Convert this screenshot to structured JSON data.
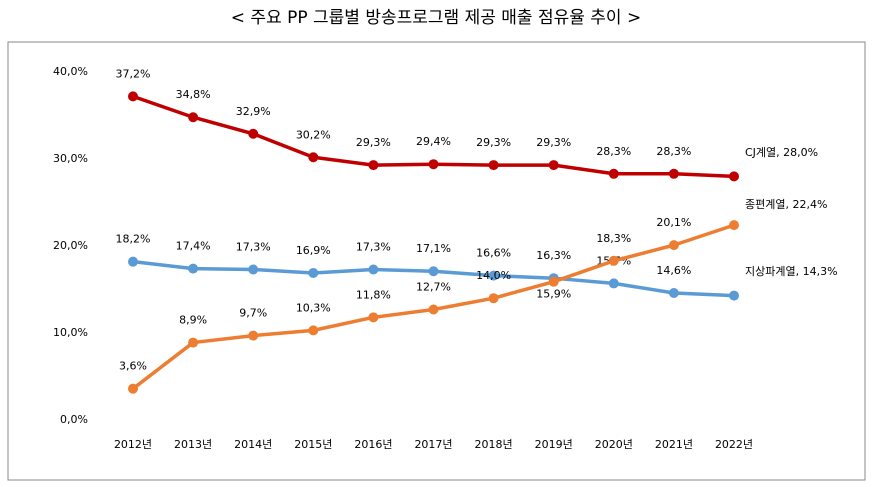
{
  "chart_data": {
    "type": "line",
    "title": "< 주요 PP 그룹별 방송프로그램 제공 매출 점유율 추이 >",
    "categories": [
      "2012년",
      "2013년",
      "2014년",
      "2015년",
      "2016년",
      "2017년",
      "2018년",
      "2019년",
      "2020년",
      "2021년",
      "2022년"
    ],
    "series": [
      {
        "name": "CJ계열",
        "color": "#c00000",
        "values": [
          37.2,
          34.8,
          32.9,
          30.2,
          29.3,
          29.4,
          29.3,
          29.3,
          28.3,
          28.3,
          28.0
        ],
        "value_labels": [
          "37,2%",
          "34,8%",
          "32,9%",
          "30,2%",
          "29,3%",
          "29,4%",
          "29,3%",
          "29,3%",
          "28,3%",
          "28,3%",
          "28,0%"
        ]
      },
      {
        "name": "지상파계열",
        "color": "#5b9bd5",
        "values": [
          18.2,
          17.4,
          17.3,
          16.9,
          17.3,
          17.1,
          16.6,
          16.3,
          15.7,
          14.6,
          14.3
        ],
        "value_labels": [
          "18,2%",
          "17,4%",
          "17,3%",
          "16,9%",
          "17,3%",
          "17,1%",
          "16,6%",
          "16,3%",
          "15,7%",
          "14,6%",
          "14,3%"
        ]
      },
      {
        "name": "종편계열",
        "color": "#ed7d31",
        "values": [
          3.6,
          8.9,
          9.7,
          10.3,
          11.8,
          12.7,
          14.0,
          15.9,
          18.3,
          20.1,
          22.4
        ],
        "value_labels": [
          "3,6%",
          "8,9%",
          "9,7%",
          "10,3%",
          "11,8%",
          "12,7%",
          "14,0%",
          "15,9%",
          "18,3%",
          "20,1%",
          "22,4%"
        ]
      }
    ],
    "legend_separator": ", ",
    "ylim": [
      0,
      40
    ],
    "yticks": [
      {
        "value": 0,
        "label": "0,0%"
      },
      {
        "value": 10,
        "label": "10,0%"
      },
      {
        "value": 20,
        "label": "20,0%"
      },
      {
        "value": 30,
        "label": "30,0%"
      },
      {
        "value": 40,
        "label": "40,0%"
      }
    ],
    "grid": false
  }
}
